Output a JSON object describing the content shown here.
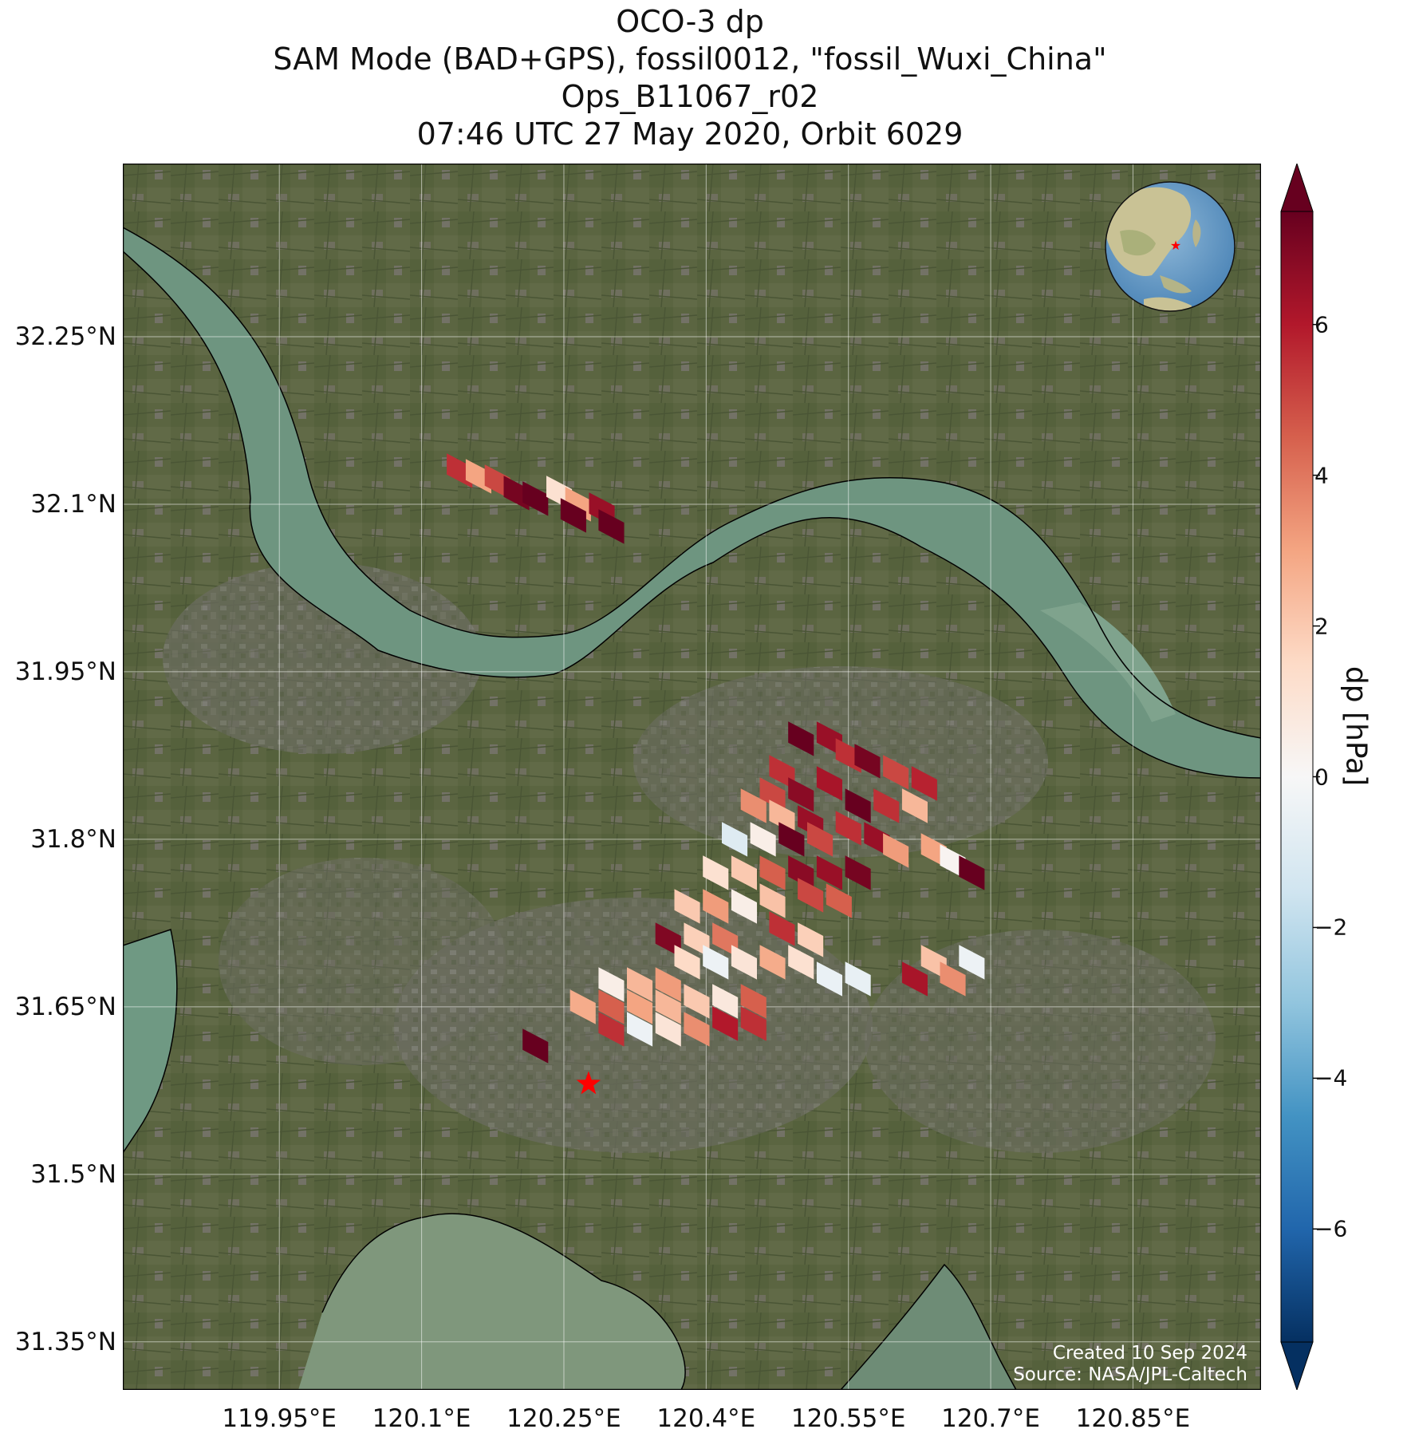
{
  "title": {
    "line1": "OCO-3 dp",
    "line2": "SAM Mode (BAD+GPS), fossil0012, \"fossil_Wuxi_China\"",
    "line3": "Ops_B11067_r02",
    "line4": "07:46 UTC 27 May 2020, Orbit 6029"
  },
  "map": {
    "lon_range": [
      119.785,
      120.985
    ],
    "lat_range": [
      31.307,
      32.405
    ],
    "lat_ticks": [
      {
        "value": 32.25,
        "label": "32.25°N"
      },
      {
        "value": 32.1,
        "label": "32.1°N"
      },
      {
        "value": 31.95,
        "label": "31.95°N"
      },
      {
        "value": 31.8,
        "label": "31.8°N"
      },
      {
        "value": 31.65,
        "label": "31.65°N"
      },
      {
        "value": 31.5,
        "label": "31.5°N"
      },
      {
        "value": 31.35,
        "label": "31.35°N"
      }
    ],
    "lon_ticks": [
      {
        "value": 119.95,
        "label": "119.95°E"
      },
      {
        "value": 120.1,
        "label": "120.1°E"
      },
      {
        "value": 120.25,
        "label": "120.25°E"
      },
      {
        "value": 120.4,
        "label": "120.4°E"
      },
      {
        "value": 120.55,
        "label": "120.55°E"
      },
      {
        "value": 120.7,
        "label": "120.7°E"
      },
      {
        "value": 120.85,
        "label": "120.85°E"
      }
    ],
    "gridlines": true,
    "target_marker": {
      "lon": 120.276,
      "lat": 31.581,
      "symbol": "star",
      "color": "#ff0000"
    },
    "basemap": "satellite imagery",
    "inset_globe": {
      "position": "top-right",
      "marker": "red star"
    },
    "credits": {
      "created": "Created 10 Sep 2024",
      "source": "Source: NASA/JPL-Caltech"
    }
  },
  "colorbar": {
    "label": "dp [hPa]",
    "range": [
      -7.5,
      7.5
    ],
    "ticks": [
      "6",
      "4",
      "2",
      "0",
      "−2",
      "−4",
      "−6"
    ],
    "tick_values": [
      6,
      4,
      2,
      0,
      -2,
      -4,
      -6
    ],
    "colormap": "RdBu_r",
    "extend": "both"
  },
  "chart_data": {
    "type": "heatmap",
    "variable": "dp",
    "units": "hPa",
    "footprints": [
      {
        "lon": 120.14,
        "lat": 32.13,
        "dp": 5.5
      },
      {
        "lon": 120.16,
        "lat": 32.125,
        "dp": 3.0
      },
      {
        "lon": 120.18,
        "lat": 32.12,
        "dp": 5.0
      },
      {
        "lon": 120.2,
        "lat": 32.11,
        "dp": 7.2
      },
      {
        "lon": 120.22,
        "lat": 32.105,
        "dp": 7.5
      },
      {
        "lon": 120.245,
        "lat": 32.11,
        "dp": 1.2
      },
      {
        "lon": 120.265,
        "lat": 32.1,
        "dp": 3.0
      },
      {
        "lon": 120.29,
        "lat": 32.095,
        "dp": 6.5
      },
      {
        "lon": 120.3,
        "lat": 32.08,
        "dp": 7.5
      },
      {
        "lon": 120.26,
        "lat": 32.09,
        "dp": 7.5
      },
      {
        "lon": 120.5,
        "lat": 31.89,
        "dp": 7.5
      },
      {
        "lon": 120.53,
        "lat": 31.89,
        "dp": 6.5
      },
      {
        "lon": 120.55,
        "lat": 31.875,
        "dp": 5.5
      },
      {
        "lon": 120.57,
        "lat": 31.87,
        "dp": 7.2
      },
      {
        "lon": 120.6,
        "lat": 31.86,
        "dp": 5.0
      },
      {
        "lon": 120.63,
        "lat": 31.85,
        "dp": 5.8
      },
      {
        "lon": 120.48,
        "lat": 31.86,
        "dp": 5.5
      },
      {
        "lon": 120.47,
        "lat": 31.84,
        "dp": 5.0
      },
      {
        "lon": 120.5,
        "lat": 31.84,
        "dp": 6.8
      },
      {
        "lon": 120.53,
        "lat": 31.85,
        "dp": 6.2
      },
      {
        "lon": 120.45,
        "lat": 31.83,
        "dp": 3.5
      },
      {
        "lon": 120.48,
        "lat": 31.82,
        "dp": 2.5
      },
      {
        "lon": 120.51,
        "lat": 31.815,
        "dp": 6.5
      },
      {
        "lon": 120.56,
        "lat": 31.83,
        "dp": 7.5
      },
      {
        "lon": 120.59,
        "lat": 31.83,
        "dp": 5.5
      },
      {
        "lon": 120.62,
        "lat": 31.83,
        "dp": 2.5
      },
      {
        "lon": 120.43,
        "lat": 31.8,
        "dp": -1.0
      },
      {
        "lon": 120.46,
        "lat": 31.8,
        "dp": 0.5
      },
      {
        "lon": 120.49,
        "lat": 31.8,
        "dp": 7.5
      },
      {
        "lon": 120.52,
        "lat": 31.8,
        "dp": 5.0
      },
      {
        "lon": 120.55,
        "lat": 31.81,
        "dp": 5.5
      },
      {
        "lon": 120.58,
        "lat": 31.8,
        "dp": 6.5
      },
      {
        "lon": 120.6,
        "lat": 31.79,
        "dp": 3.2
      },
      {
        "lon": 120.64,
        "lat": 31.79,
        "dp": 3.0
      },
      {
        "lon": 120.66,
        "lat": 31.78,
        "dp": 0.2
      },
      {
        "lon": 120.68,
        "lat": 31.77,
        "dp": 7.5
      },
      {
        "lon": 120.41,
        "lat": 31.77,
        "dp": 1.2
      },
      {
        "lon": 120.44,
        "lat": 31.77,
        "dp": 2.0
      },
      {
        "lon": 120.47,
        "lat": 31.77,
        "dp": 4.5
      },
      {
        "lon": 120.5,
        "lat": 31.77,
        "dp": 6.8
      },
      {
        "lon": 120.53,
        "lat": 31.77,
        "dp": 6.5
      },
      {
        "lon": 120.56,
        "lat": 31.77,
        "dp": 7.2
      },
      {
        "lon": 120.38,
        "lat": 31.74,
        "dp": 2.0
      },
      {
        "lon": 120.41,
        "lat": 31.74,
        "dp": 3.2
      },
      {
        "lon": 120.44,
        "lat": 31.74,
        "dp": 0.5
      },
      {
        "lon": 120.47,
        "lat": 31.745,
        "dp": 2.2
      },
      {
        "lon": 120.51,
        "lat": 31.75,
        "dp": 5.0
      },
      {
        "lon": 120.54,
        "lat": 31.745,
        "dp": 4.5
      },
      {
        "lon": 120.36,
        "lat": 31.71,
        "dp": 7.0
      },
      {
        "lon": 120.39,
        "lat": 31.71,
        "dp": 1.8
      },
      {
        "lon": 120.42,
        "lat": 31.71,
        "dp": 4.0
      },
      {
        "lon": 120.48,
        "lat": 31.72,
        "dp": 5.5
      },
      {
        "lon": 120.51,
        "lat": 31.71,
        "dp": 1.8
      },
      {
        "lon": 120.38,
        "lat": 31.69,
        "dp": 1.5
      },
      {
        "lon": 120.41,
        "lat": 31.69,
        "dp": -0.4
      },
      {
        "lon": 120.44,
        "lat": 31.69,
        "dp": 1.0
      },
      {
        "lon": 120.47,
        "lat": 31.69,
        "dp": 2.8
      },
      {
        "lon": 120.5,
        "lat": 31.69,
        "dp": 1.2
      },
      {
        "lon": 120.53,
        "lat": 31.675,
        "dp": -0.5
      },
      {
        "lon": 120.56,
        "lat": 31.675,
        "dp": -0.6
      },
      {
        "lon": 120.62,
        "lat": 31.675,
        "dp": 6.2
      },
      {
        "lon": 120.64,
        "lat": 31.69,
        "dp": 2.2
      },
      {
        "lon": 120.66,
        "lat": 31.675,
        "dp": 3.5
      },
      {
        "lon": 120.68,
        "lat": 31.69,
        "dp": -0.4
      },
      {
        "lon": 120.3,
        "lat": 31.67,
        "dp": 0.5
      },
      {
        "lon": 120.33,
        "lat": 31.67,
        "dp": 2.5
      },
      {
        "lon": 120.36,
        "lat": 31.67,
        "dp": 3.2
      },
      {
        "lon": 120.27,
        "lat": 31.65,
        "dp": 2.8
      },
      {
        "lon": 120.3,
        "lat": 31.65,
        "dp": 4.5
      },
      {
        "lon": 120.33,
        "lat": 31.65,
        "dp": 3.0
      },
      {
        "lon": 120.36,
        "lat": 31.65,
        "dp": 2.5
      },
      {
        "lon": 120.39,
        "lat": 31.655,
        "dp": 2.0
      },
      {
        "lon": 120.42,
        "lat": 31.655,
        "dp": 0.8
      },
      {
        "lon": 120.45,
        "lat": 31.655,
        "dp": 4.5
      },
      {
        "lon": 120.3,
        "lat": 31.63,
        "dp": 5.5
      },
      {
        "lon": 120.33,
        "lat": 31.63,
        "dp": -0.4
      },
      {
        "lon": 120.36,
        "lat": 31.63,
        "dp": 1.0
      },
      {
        "lon": 120.39,
        "lat": 31.63,
        "dp": 3.5
      },
      {
        "lon": 120.42,
        "lat": 31.635,
        "dp": 6.0
      },
      {
        "lon": 120.45,
        "lat": 31.635,
        "dp": 5.5
      },
      {
        "lon": 120.22,
        "lat": 31.615,
        "dp": 7.5
      }
    ]
  }
}
